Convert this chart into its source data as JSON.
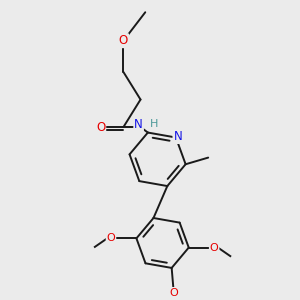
{
  "background_color": "#ebebeb",
  "bond_color": "#1a1a1a",
  "bond_lw": 1.4,
  "atom_colors": {
    "O": "#e60000",
    "N": "#1414e6",
    "H": "#4d9999",
    "C": "#1a1a1a"
  },
  "figsize": [
    3.0,
    3.0
  ],
  "dpi": 100,
  "xlim": [
    -0.3,
    1.7
  ],
  "ylim": [
    -1.55,
    1.45
  ]
}
